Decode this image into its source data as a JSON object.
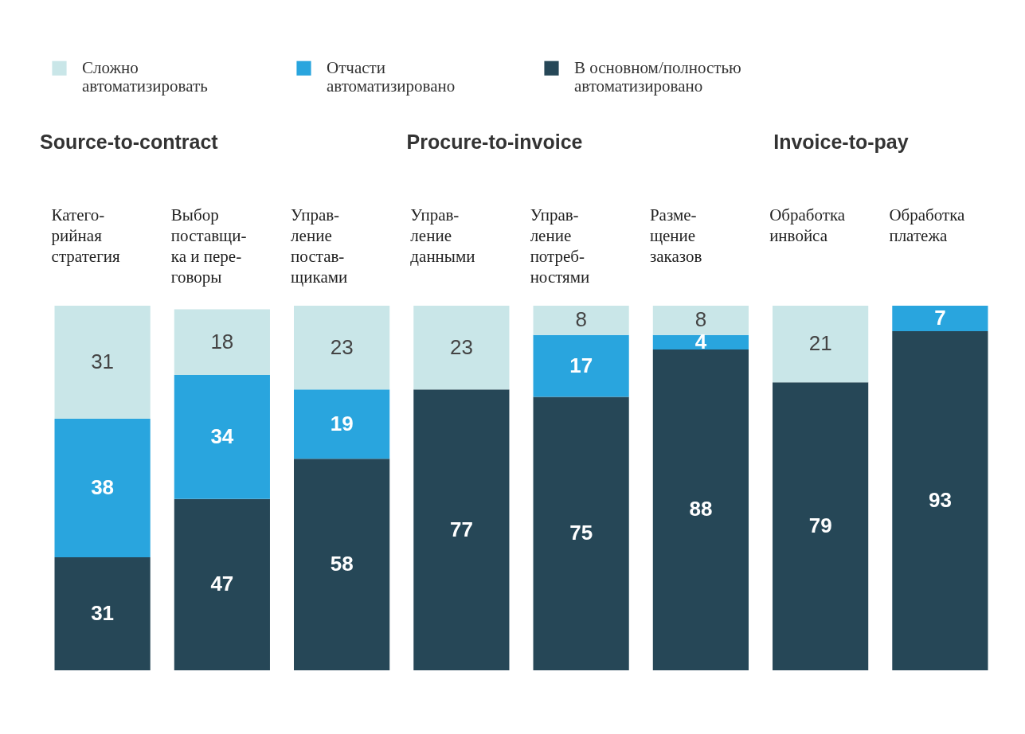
{
  "chart_data": {
    "type": "bar",
    "stacked": true,
    "data_labels": true,
    "legend": "top left",
    "tick_labels": "x",
    "grid": false,
    "categories": [
      "Катего-\nрийная\nстратегия",
      "Выбор\nпоставщи-\nка и пере-\nговоры",
      "Управ-\nление\nпостав-\nщиками",
      "Управ-\nление\nданными",
      "Управ-\nление\nпотреб-\nностями",
      "Разме-\nщение\nзаказов",
      "Обработка\nинвойса",
      "Обработка\nплатежа"
    ],
    "ylim": [
      0,
      100
    ],
    "series": [
      {
        "name": "В основном/полностью\nавтоматизировано",
        "color": "#264757",
        "values": [
          31,
          47,
          58,
          77,
          75,
          88,
          79,
          93
        ]
      },
      {
        "name": "Отчасти\nавтоматизировано",
        "color": "#29a5de",
        "values": [
          38,
          34,
          19,
          null,
          17,
          4,
          null,
          7
        ]
      },
      {
        "name": "Сложно\nавтоматизировать",
        "color": "#c9e6e8",
        "values": [
          31,
          18,
          23,
          23,
          8,
          8,
          21,
          null
        ]
      }
    ],
    "annotations": [
      "Source-to-contract",
      "Procure-to-invoice",
      "Invoice-to-pay"
    ]
  }
}
